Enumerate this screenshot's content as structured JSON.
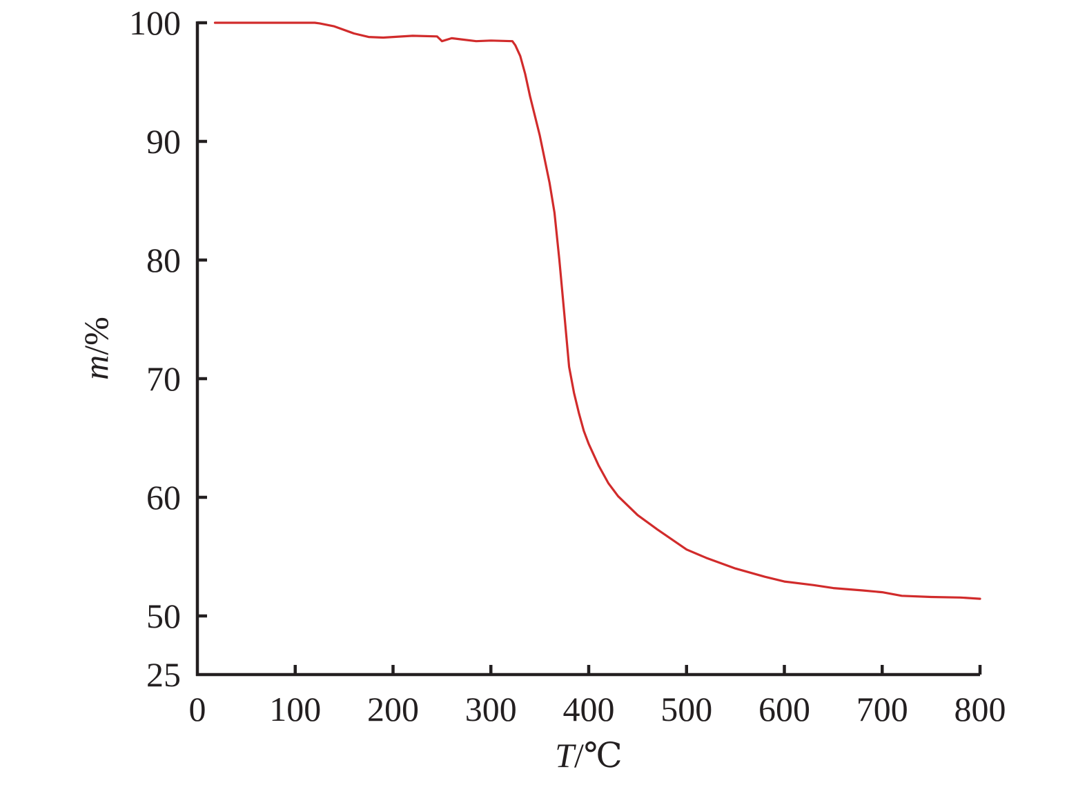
{
  "chart_data": {
    "type": "line",
    "title": "",
    "xlabel": "",
    "ylabel": "",
    "xlabel_parts": {
      "variable": "T",
      "unit": "/℃"
    },
    "ylabel_parts": {
      "variable": "m",
      "unit": "/%"
    },
    "xlim": [
      0,
      800
    ],
    "ylim": [
      50,
      100
    ],
    "x_ticks": [
      0,
      100,
      200,
      300,
      400,
      500,
      600,
      700,
      800
    ],
    "y_ticks": [
      100,
      90,
      80,
      70,
      60,
      50
    ],
    "y_break_label": "25",
    "grid": false,
    "legend": "none",
    "line_color": "#d12b2b",
    "axis_color": "#231f20",
    "series": [
      {
        "x": [
          18,
          60,
          100,
          120,
          125,
          140,
          160,
          175,
          190,
          200,
          220,
          245,
          250,
          260,
          270,
          285,
          300,
          322,
          325,
          330,
          335,
          340,
          350,
          360,
          365,
          370,
          375,
          380,
          385,
          390,
          395,
          400,
          410,
          420,
          430,
          450,
          470,
          500,
          520,
          550,
          580,
          600,
          630,
          650,
          680,
          700,
          710,
          720,
          750,
          780,
          800
        ],
        "y": [
          100,
          100,
          100,
          100,
          99.95,
          99.7,
          99.1,
          98.8,
          98.75,
          98.8,
          98.9,
          98.85,
          98.45,
          98.7,
          98.6,
          98.45,
          98.5,
          98.45,
          98.1,
          97.2,
          95.7,
          93.8,
          90.5,
          86.5,
          84,
          80,
          75.5,
          71,
          68.8,
          67.1,
          65.6,
          64.5,
          62.7,
          61.2,
          60.1,
          58.5,
          57.3,
          55.6,
          54.9,
          54,
          53.3,
          52.9,
          52.6,
          52.35,
          52.15,
          52,
          51.85,
          51.7,
          51.6,
          51.55,
          51.45
        ]
      }
    ]
  }
}
